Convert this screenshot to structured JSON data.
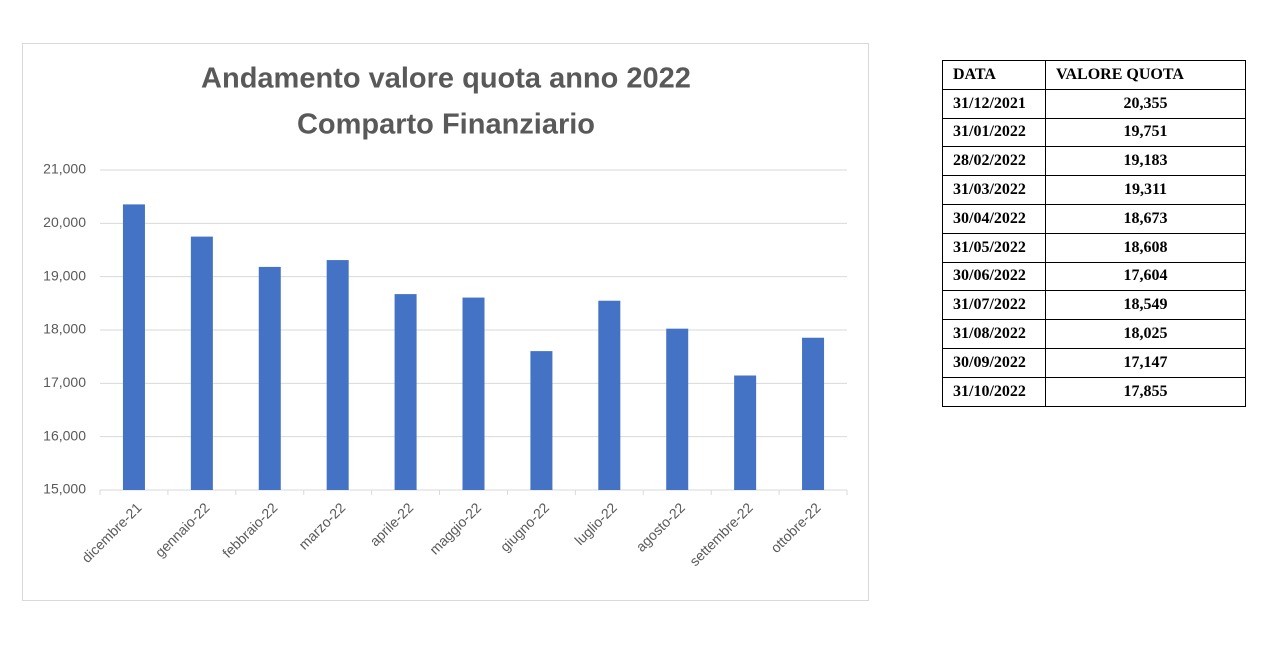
{
  "chart_data": {
    "type": "bar",
    "title": "Andamento valore quota anno 2022",
    "subtitle": "Comparto Finanziario",
    "categories": [
      "dicembre-21",
      "gennaio-22",
      "febbraio-22",
      "marzo-22",
      "aprile-22",
      "maggio-22",
      "giugno-22",
      "luglio-22",
      "agosto-22",
      "settembre-22",
      "ottobre-22"
    ],
    "values": [
      20.355,
      19.751,
      19.183,
      19.311,
      18.673,
      18.608,
      17.604,
      18.549,
      18.025,
      17.147,
      17.855
    ],
    "color": "#4472c4",
    "ylim": [
      15,
      21
    ],
    "yticks": [
      {
        "value": 15,
        "label": "15,000"
      },
      {
        "value": 16,
        "label": "16,000"
      },
      {
        "value": 17,
        "label": "17,000"
      },
      {
        "value": 18,
        "label": "18,000"
      },
      {
        "value": 19,
        "label": "19,000"
      },
      {
        "value": 20,
        "label": "20,000"
      },
      {
        "value": 21,
        "label": "21,000"
      }
    ],
    "grid": true
  },
  "table": {
    "header": [
      "DATA",
      "VALORE QUOTA"
    ],
    "rows": [
      [
        "31/12/2021",
        "20,355"
      ],
      [
        "31/01/2022",
        "19,751"
      ],
      [
        "28/02/2022",
        "19,183"
      ],
      [
        "31/03/2022",
        "19,311"
      ],
      [
        "30/04/2022",
        "18,673"
      ],
      [
        "31/05/2022",
        "18,608"
      ],
      [
        "30/06/2022",
        "17,604"
      ],
      [
        "31/07/2022",
        "18,549"
      ],
      [
        "31/08/2022",
        "18,025"
      ],
      [
        "30/09/2022",
        "17,147"
      ],
      [
        "31/10/2022",
        "17,855"
      ]
    ]
  }
}
